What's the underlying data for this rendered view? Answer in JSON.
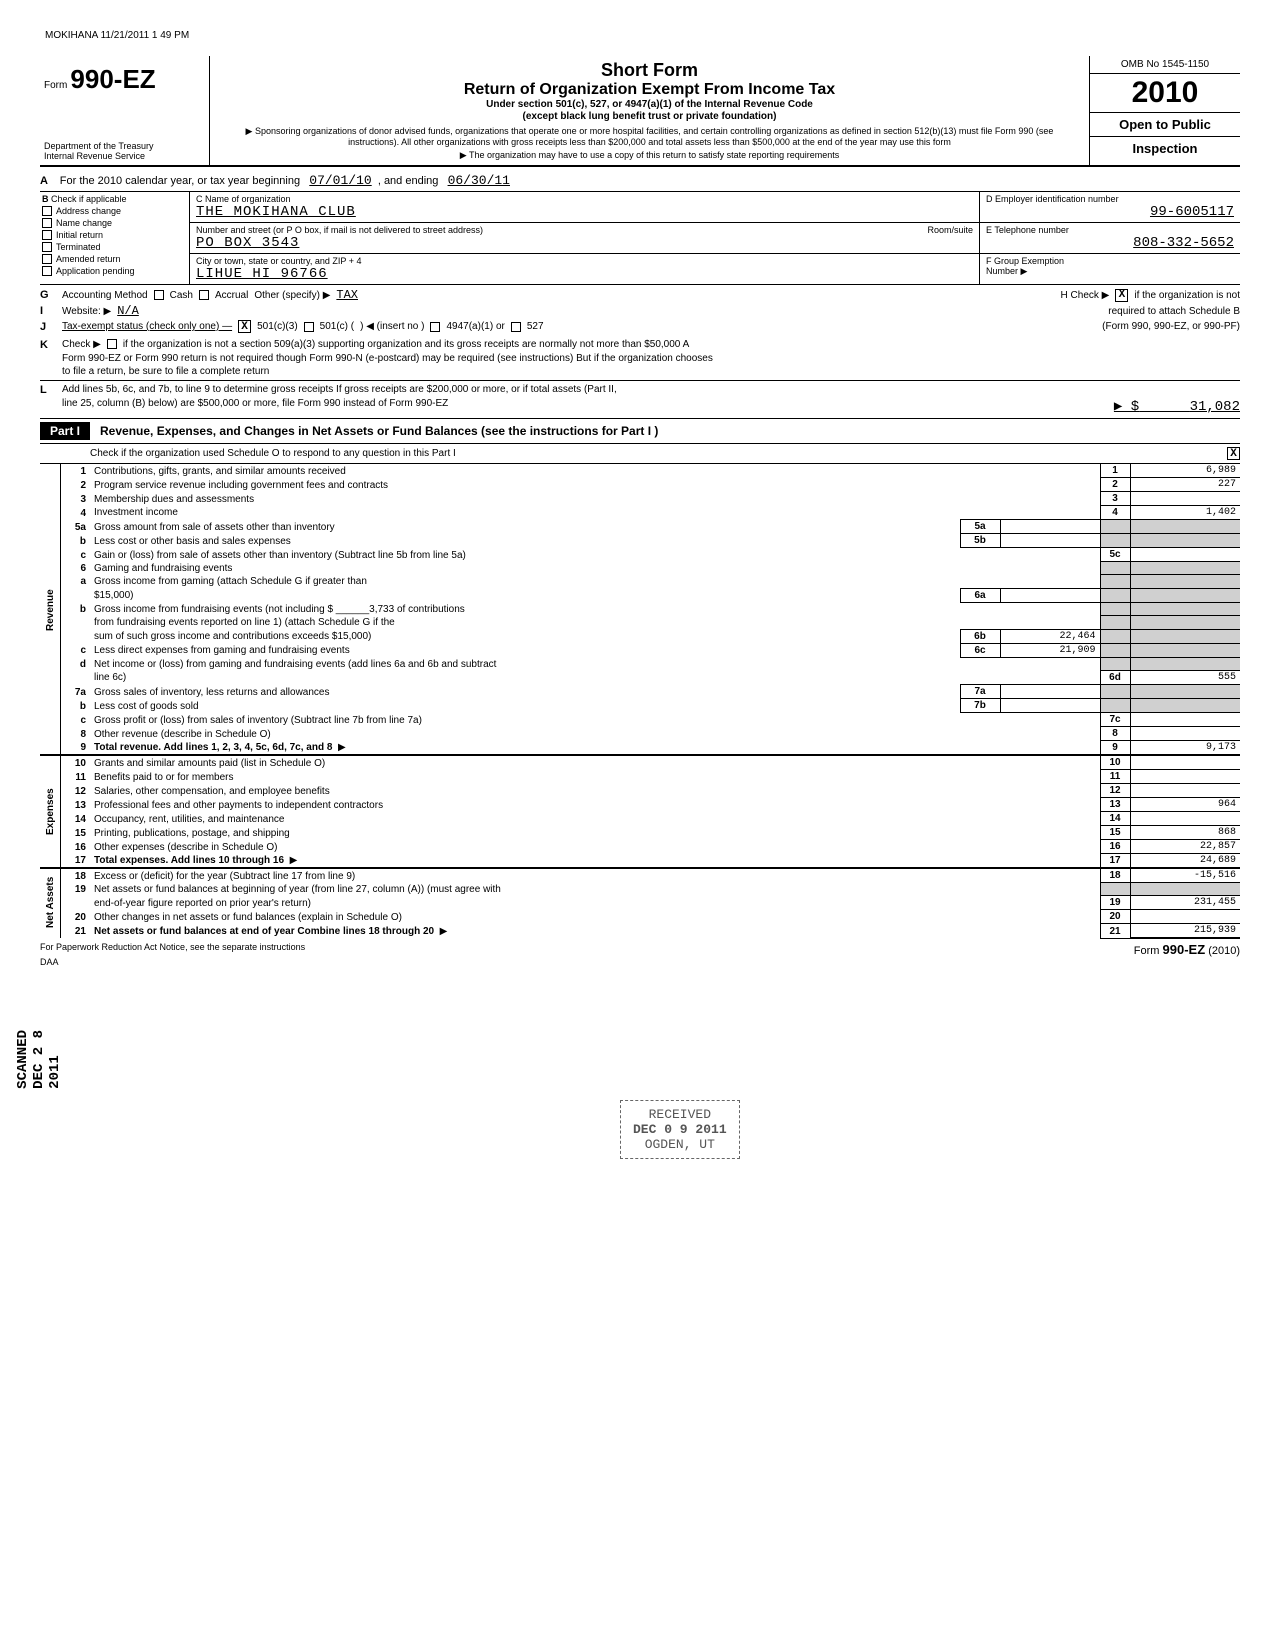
{
  "header_stamp": "MOKIHANA 11/21/2011 1 49 PM",
  "form": {
    "prefix": "Form",
    "number": "990-EZ",
    "dept1": "Department of the Treasury",
    "dept2": "Internal Revenue Service"
  },
  "title": {
    "short_form": "Short Form",
    "main": "Return of Organization Exempt From Income Tax",
    "sub1": "Under section 501(c), 527, or 4947(a)(1) of the Internal Revenue Code",
    "sub2": "(except black lung benefit trust or private foundation)",
    "arrow1": "▶ Sponsoring organizations of donor advised funds, organizations that operate one or more hospital facilities, and certain controlling organizations as defined in section 512(b)(13) must file Form 990 (see instructions). All other organizations with gross receipts less than $200,000 and total assets less than $500,000 at the end of the year may use this form",
    "arrow2": "▶ The organization may have to use a copy of this return to satisfy state reporting requirements"
  },
  "right": {
    "omb": "OMB No 1545-1150",
    "year": "2010",
    "open": "Open to Public",
    "inspection": "Inspection"
  },
  "lineA": {
    "prefix": "For the 2010 calendar year, or tax year beginning",
    "begin": "07/01/10",
    "mid": ", and ending",
    "end": "06/30/11"
  },
  "colB": {
    "header": "Check if applicable",
    "items": [
      "Address change",
      "Name change",
      "Initial return",
      "Terminated",
      "Amended return",
      "Application pending"
    ]
  },
  "colC": {
    "name_label": "C  Name of organization",
    "name": "THE MOKIHANA CLUB",
    "addr_label": "Number and street (or P O  box, if mail is not delivered to street address)",
    "room_label": "Room/suite",
    "addr": "PO BOX 3543",
    "city_label": "City or town, state or country, and ZIP + 4",
    "city": "LIHUE                    HI 96766"
  },
  "colDEF": {
    "d_label": "D  Employer identification number",
    "d_value": "99-6005117",
    "e_label": "E  Telephone number",
    "e_value": "808-332-5652",
    "f_label": "F  Group Exemption",
    "f_label2": "Number        ▶"
  },
  "lineG": {
    "letter": "G",
    "label": "Accounting Method",
    "cash": "Cash",
    "accrual": "Accrual",
    "other": "Other (specify) ▶",
    "other_val": "TAX",
    "h_label": "H   Check ▶",
    "h_text": "if the organization is not",
    "h_text2": "required to attach Schedule B"
  },
  "lineI": {
    "letter": "I",
    "label": "Website:   ▶",
    "value": "N/A"
  },
  "lineJ": {
    "letter": "J",
    "label": "Tax-exempt status (check only one) —",
    "opt1": "501(c)(3)",
    "opt2": "501(c) (",
    "opt2b": ")  ◀ (insert no )",
    "opt3": "4947(a)(1) or",
    "opt4": "527",
    "right": "(Form 990, 990-EZ, or 990-PF)"
  },
  "lineK": {
    "letter": "K",
    "label": "Check ▶",
    "text1": "if the organization is not a section 509(a)(3) supporting organization and its gross receipts are normally not more than $50,000  A",
    "text2": "Form 990-EZ or Form 990 return is not required though Form 990-N (e-postcard) may be required (see instructions)  But if the organization chooses",
    "text3": "to file a return, be sure to file a complete return"
  },
  "lineL": {
    "letter": "L",
    "text1": "Add lines 5b, 6c, and 7b, to line 9 to determine gross receipts  If gross receipts are $200,000 or more, or if total assets (Part II,",
    "text2": "line 25, column (B) below) are $500,000 or more, file Form 990 instead of Form 990-EZ",
    "arrow": "▶  $",
    "value": "31,082"
  },
  "part1": {
    "label": "Part I",
    "title": "Revenue, Expenses, and Changes in Net Assets or Fund Balances (see the instructions for Part I )",
    "sub": "Check if the organization used Schedule O to respond to any question in this Part I"
  },
  "sections": {
    "revenue": "Revenue",
    "expenses": "Expenses",
    "netassets": "Net Assets"
  },
  "rows": [
    {
      "n": "1",
      "d": "Contributions, gifts, grants, and similar amounts received",
      "rn": "1",
      "rv": "6,989"
    },
    {
      "n": "2",
      "d": "Program service revenue including government fees and contracts",
      "rn": "2",
      "rv": "227"
    },
    {
      "n": "3",
      "d": "Membership dues and assessments",
      "rn": "3",
      "rv": ""
    },
    {
      "n": "4",
      "d": "Investment income",
      "rn": "4",
      "rv": "1,402"
    },
    {
      "n": "5a",
      "d": "Gross amount from sale of assets other than inventory",
      "mn": "5a",
      "mv": ""
    },
    {
      "n": "b",
      "d": "Less  cost or other basis and sales expenses",
      "mn": "5b",
      "mv": ""
    },
    {
      "n": "c",
      "d": "Gain or (loss) from sale of assets other than inventory (Subtract line 5b from line 5a)",
      "rn": "5c",
      "rv": ""
    },
    {
      "n": "6",
      "d": "Gaming and fundraising events"
    },
    {
      "n": "a",
      "d": "Gross income from gaming (attach Schedule G if greater than"
    },
    {
      "n": "",
      "d": "$15,000)",
      "mn": "6a",
      "mv": ""
    },
    {
      "n": "b",
      "d": "Gross income from fundraising events (not including $ ______3,733  of contributions"
    },
    {
      "n": "",
      "d": "from fundraising events reported on line 1) (attach Schedule G if the"
    },
    {
      "n": "",
      "d": "sum of such gross income and contributions exceeds $15,000)",
      "mn": "6b",
      "mv": "22,464"
    },
    {
      "n": "c",
      "d": "Less  direct expenses from gaming and fundraising events",
      "mn": "6c",
      "mv": "21,909"
    },
    {
      "n": "d",
      "d": "Net income or (loss) from gaming and fundraising events (add lines 6a and 6b and subtract"
    },
    {
      "n": "",
      "d": "line 6c)",
      "rn": "6d",
      "rv": "555"
    },
    {
      "n": "7a",
      "d": "Gross sales of inventory, less returns and allowances",
      "mn": "7a",
      "mv": ""
    },
    {
      "n": "b",
      "d": "Less  cost of goods sold",
      "mn": "7b",
      "mv": ""
    },
    {
      "n": "c",
      "d": "Gross profit or (loss) from sales of inventory (Subtract line 7b from line 7a)",
      "rn": "7c",
      "rv": ""
    },
    {
      "n": "8",
      "d": "Other revenue (describe in Schedule O)",
      "rn": "8",
      "rv": ""
    },
    {
      "n": "9",
      "d": "Total revenue. Add lines 1, 2, 3, 4, 5c, 6d, 7c, and 8",
      "rn": "9",
      "rv": "9,173",
      "arrow": true
    }
  ],
  "exp_rows": [
    {
      "n": "10",
      "d": "Grants and similar amounts paid (list in Schedule O)",
      "rn": "10",
      "rv": ""
    },
    {
      "n": "11",
      "d": "Benefits paid to or for members",
      "rn": "11",
      "rv": ""
    },
    {
      "n": "12",
      "d": "Salaries, other compensation, and employee benefits",
      "rn": "12",
      "rv": ""
    },
    {
      "n": "13",
      "d": "Professional fees and other payments to independent contractors",
      "rn": "13",
      "rv": "964"
    },
    {
      "n": "14",
      "d": "Occupancy, rent, utilities, and maintenance",
      "rn": "14",
      "rv": ""
    },
    {
      "n": "15",
      "d": "Printing, publications, postage, and shipping",
      "rn": "15",
      "rv": "868"
    },
    {
      "n": "16",
      "d": "Other expenses (describe in Schedule O)",
      "rn": "16",
      "rv": "22,857"
    },
    {
      "n": "17",
      "d": "Total expenses. Add lines 10 through 16",
      "rn": "17",
      "rv": "24,689",
      "arrow": true
    }
  ],
  "na_rows": [
    {
      "n": "18",
      "d": "Excess or (deficit) for the year (Subtract line 17 from line 9)",
      "rn": "18",
      "rv": "-15,516"
    },
    {
      "n": "19",
      "d": "Net assets or fund balances at beginning of year (from line 27, column (A)) (must agree with"
    },
    {
      "n": "",
      "d": "end-of-year figure reported on prior year's return)",
      "rn": "19",
      "rv": "231,455"
    },
    {
      "n": "20",
      "d": "Other changes in net assets or fund balances (explain in Schedule O)",
      "rn": "20",
      "rv": ""
    },
    {
      "n": "21",
      "d": "Net assets or fund balances at end of year  Combine lines 18 through 20",
      "rn": "21",
      "rv": "215,939",
      "arrow": true
    }
  ],
  "footer": {
    "left": "For Paperwork Reduction Act Notice, see the separate instructions",
    "daa": "DAA",
    "right_prefix": "Form ",
    "right_form": "990-EZ",
    "right_year": " (2010)"
  },
  "stamp": {
    "received": "RECEIVED",
    "date": "DEC 0 9 2011",
    "ogden": "OGDEN, UT"
  },
  "side_text": "SCANNED DEC 2 8 2011"
}
